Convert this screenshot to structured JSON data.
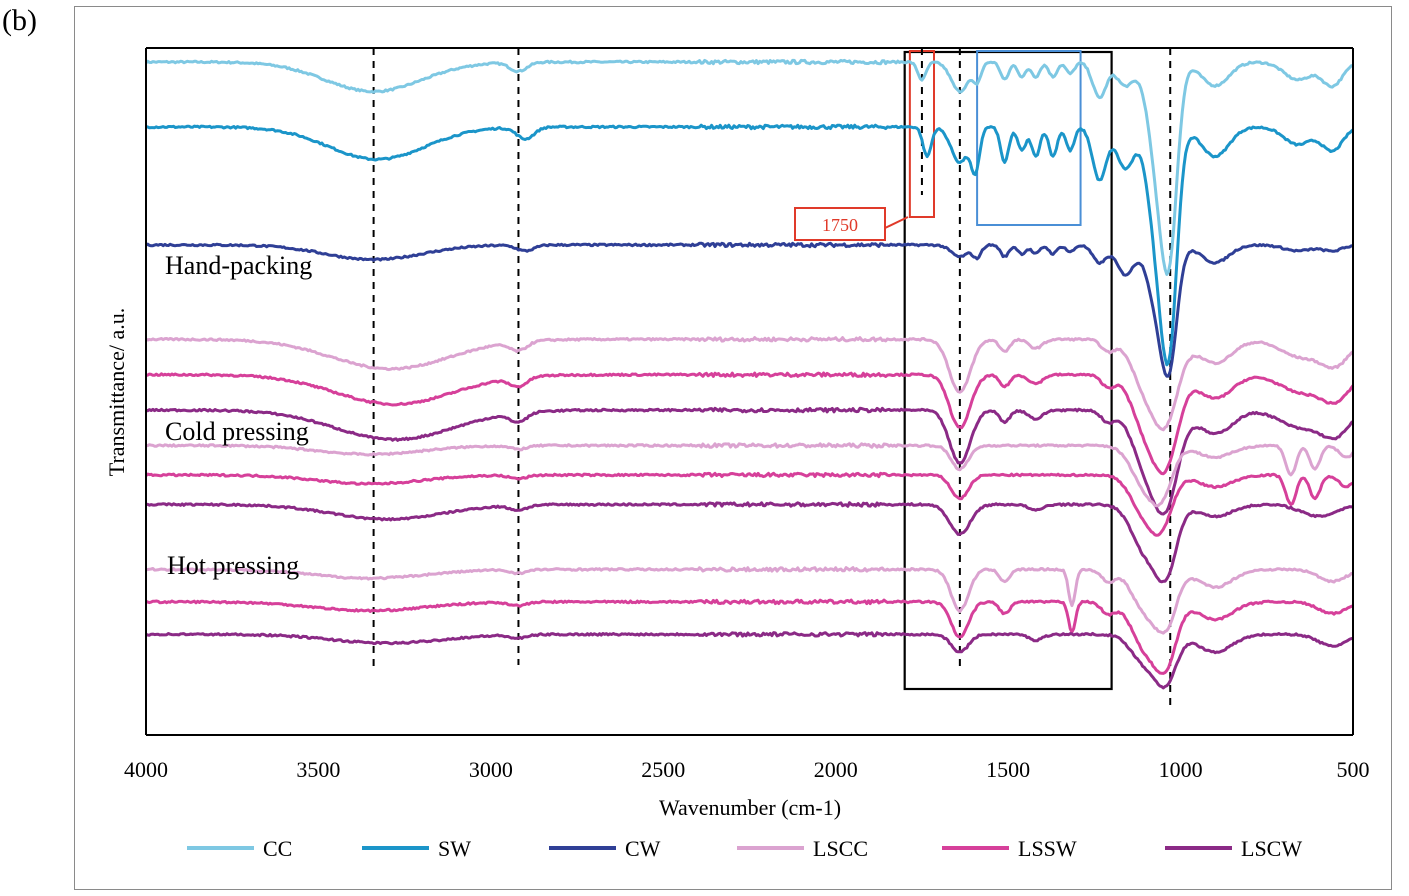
{
  "panel_label": "(b)",
  "colors": {
    "CC": "#7ec8e3",
    "SW": "#1b95c9",
    "CW": "#2f3f96",
    "LSCC": "#dba3d0",
    "LSSW": "#d6409a",
    "LSCW": "#8b2a86",
    "annotation_red": "#e03a2a",
    "annotation_blue": "#4a8fd6"
  },
  "chart_data": {
    "type": "line",
    "title": "",
    "xlabel": "Wavenumber (cm-1)",
    "ylabel": "Transmittance/ a.u.",
    "xlim": [
      4000,
      500
    ],
    "x_reversed": true,
    "x_ticks": [
      4000,
      3500,
      3000,
      2500,
      2000,
      1500,
      1000,
      500
    ],
    "y_ticks": [],
    "grid": false,
    "legend_position": "bottom",
    "groups": [
      {
        "label": "Hand-packing"
      },
      {
        "label": "Cold pressing"
      },
      {
        "label": "Hot pressing"
      }
    ],
    "series": [
      {
        "name": "CC",
        "group": "raw",
        "offset": 0.95,
        "peaks": [
          [
            3340,
            0.05,
            140
          ],
          [
            2920,
            0.015,
            25
          ],
          [
            1750,
            0.03,
            12
          ],
          [
            1640,
            0.05,
            25
          ],
          [
            1590,
            0.03,
            12
          ],
          [
            1510,
            0.03,
            12
          ],
          [
            1460,
            0.025,
            12
          ],
          [
            1420,
            0.025,
            12
          ],
          [
            1370,
            0.025,
            12
          ],
          [
            1320,
            0.02,
            12
          ],
          [
            1235,
            0.06,
            20
          ],
          [
            1160,
            0.04,
            25
          ],
          [
            1060,
            0.2,
            30
          ],
          [
            1030,
            0.22,
            22
          ],
          [
            900,
            0.04,
            40
          ],
          [
            660,
            0.03,
            40
          ],
          [
            560,
            0.04,
            30
          ]
        ]
      },
      {
        "name": "SW",
        "group": "raw",
        "offset": 0.84,
        "peaks": [
          [
            3330,
            0.055,
            140
          ],
          [
            2900,
            0.02,
            25
          ],
          [
            1735,
            0.05,
            12
          ],
          [
            1640,
            0.06,
            25
          ],
          [
            1595,
            0.07,
            12
          ],
          [
            1510,
            0.06,
            12
          ],
          [
            1460,
            0.04,
            12
          ],
          [
            1420,
            0.05,
            12
          ],
          [
            1370,
            0.05,
            12
          ],
          [
            1320,
            0.04,
            12
          ],
          [
            1235,
            0.09,
            20
          ],
          [
            1160,
            0.07,
            25
          ],
          [
            1060,
            0.22,
            30
          ],
          [
            1030,
            0.25,
            22
          ],
          [
            900,
            0.05,
            40
          ],
          [
            660,
            0.03,
            40
          ],
          [
            560,
            0.04,
            30
          ]
        ]
      },
      {
        "name": "CW",
        "group": "raw",
        "offset": 0.64,
        "peaks": [
          [
            3340,
            0.025,
            140
          ],
          [
            2900,
            0.01,
            25
          ],
          [
            1640,
            0.02,
            25
          ],
          [
            1590,
            0.02,
            12
          ],
          [
            1510,
            0.02,
            12
          ],
          [
            1460,
            0.015,
            12
          ],
          [
            1420,
            0.015,
            12
          ],
          [
            1370,
            0.015,
            12
          ],
          [
            1320,
            0.012,
            12
          ],
          [
            1235,
            0.03,
            20
          ],
          [
            1160,
            0.05,
            25
          ],
          [
            1060,
            0.12,
            30
          ],
          [
            1030,
            0.14,
            22
          ],
          [
            900,
            0.03,
            40
          ],
          [
            660,
            0.01,
            40
          ],
          [
            560,
            0.01,
            30
          ]
        ]
      },
      {
        "name": "LSCC",
        "group": "Hand-packing",
        "offset": 0.48,
        "peaks": [
          [
            3290,
            0.05,
            170
          ],
          [
            2920,
            0.015,
            25
          ],
          [
            1640,
            0.09,
            30
          ],
          [
            1510,
            0.02,
            15
          ],
          [
            1420,
            0.015,
            20
          ],
          [
            1210,
            0.02,
            20
          ],
          [
            1100,
            0.08,
            40
          ],
          [
            1040,
            0.12,
            35
          ],
          [
            900,
            0.04,
            50
          ],
          [
            650,
            0.03,
            60
          ],
          [
            550,
            0.04,
            40
          ]
        ]
      },
      {
        "name": "LSSW",
        "group": "Hand-packing",
        "offset": 0.42,
        "peaks": [
          [
            3280,
            0.05,
            170
          ],
          [
            2920,
            0.015,
            25
          ],
          [
            1640,
            0.09,
            30
          ],
          [
            1510,
            0.02,
            15
          ],
          [
            1420,
            0.015,
            20
          ],
          [
            1210,
            0.02,
            20
          ],
          [
            1100,
            0.09,
            40
          ],
          [
            1040,
            0.13,
            35
          ],
          [
            900,
            0.04,
            50
          ],
          [
            650,
            0.03,
            60
          ],
          [
            550,
            0.04,
            40
          ]
        ]
      },
      {
        "name": "LSCW",
        "group": "Hand-packing",
        "offset": 0.36,
        "peaks": [
          [
            3280,
            0.05,
            170
          ],
          [
            2920,
            0.015,
            25
          ],
          [
            1640,
            0.09,
            30
          ],
          [
            1510,
            0.02,
            15
          ],
          [
            1420,
            0.015,
            20
          ],
          [
            1210,
            0.02,
            20
          ],
          [
            1100,
            0.09,
            40
          ],
          [
            1040,
            0.14,
            35
          ],
          [
            900,
            0.04,
            50
          ],
          [
            650,
            0.03,
            60
          ],
          [
            550,
            0.04,
            40
          ]
        ]
      },
      {
        "name": "LSCC",
        "group": "Cold pressing",
        "offset": 0.3,
        "peaks": [
          [
            3350,
            0.015,
            150
          ],
          [
            2920,
            0.006,
            25
          ],
          [
            1640,
            0.04,
            25
          ],
          [
            1100,
            0.07,
            40
          ],
          [
            1050,
            0.06,
            30
          ],
          [
            900,
            0.02,
            50
          ],
          [
            680,
            0.05,
            15
          ],
          [
            610,
            0.04,
            15
          ],
          [
            520,
            0.02,
            20
          ]
        ]
      },
      {
        "name": "LSSW",
        "group": "Cold pressing",
        "offset": 0.25,
        "peaks": [
          [
            3350,
            0.015,
            150
          ],
          [
            2920,
            0.006,
            25
          ],
          [
            1640,
            0.04,
            25
          ],
          [
            1100,
            0.07,
            40
          ],
          [
            1050,
            0.06,
            30
          ],
          [
            900,
            0.02,
            50
          ],
          [
            680,
            0.05,
            15
          ],
          [
            610,
            0.04,
            15
          ],
          [
            520,
            0.02,
            20
          ]
        ]
      },
      {
        "name": "LSCW",
        "group": "Cold pressing",
        "offset": 0.2,
        "peaks": [
          [
            3300,
            0.025,
            160
          ],
          [
            2920,
            0.008,
            25
          ],
          [
            1640,
            0.05,
            30
          ],
          [
            1420,
            0.01,
            20
          ],
          [
            1100,
            0.08,
            40
          ],
          [
            1040,
            0.1,
            30
          ],
          [
            900,
            0.02,
            50
          ],
          [
            600,
            0.02,
            50
          ]
        ]
      },
      {
        "name": "LSCC",
        "group": "Hot pressing",
        "offset": 0.09,
        "peaks": [
          [
            3350,
            0.015,
            160
          ],
          [
            2920,
            0.006,
            25
          ],
          [
            1640,
            0.07,
            25
          ],
          [
            1510,
            0.02,
            15
          ],
          [
            1315,
            0.06,
            10
          ],
          [
            1210,
            0.02,
            20
          ],
          [
            1100,
            0.07,
            40
          ],
          [
            1040,
            0.08,
            30
          ],
          [
            900,
            0.03,
            50
          ],
          [
            560,
            0.02,
            40
          ]
        ]
      },
      {
        "name": "LSSW",
        "group": "Hot pressing",
        "offset": 0.035,
        "peaks": [
          [
            3350,
            0.015,
            160
          ],
          [
            2920,
            0.006,
            25
          ],
          [
            1640,
            0.06,
            25
          ],
          [
            1510,
            0.02,
            15
          ],
          [
            1315,
            0.05,
            10
          ],
          [
            1210,
            0.02,
            20
          ],
          [
            1100,
            0.08,
            40
          ],
          [
            1040,
            0.09,
            30
          ],
          [
            900,
            0.03,
            50
          ],
          [
            560,
            0.02,
            40
          ]
        ]
      },
      {
        "name": "LSCW",
        "group": "Hot pressing",
        "offset": -0.02,
        "peaks": [
          [
            3300,
            0.015,
            160
          ],
          [
            2920,
            0.006,
            25
          ],
          [
            1640,
            0.03,
            25
          ],
          [
            1420,
            0.01,
            20
          ],
          [
            1100,
            0.05,
            40
          ],
          [
            1040,
            0.07,
            30
          ],
          [
            900,
            0.03,
            50
          ],
          [
            560,
            0.02,
            40
          ]
        ]
      }
    ],
    "reference_lines_x": [
      3340,
      2920,
      1750,
      1640,
      1030
    ],
    "annotations": [
      {
        "text": "1750",
        "x": 1750
      },
      {
        "type": "region",
        "x_range": [
          1590,
          1290
        ],
        "color": "blue"
      },
      {
        "type": "region",
        "x_range": [
          1800,
          1200
        ],
        "color": "black"
      }
    ],
    "legend": [
      "CC",
      "SW",
      "CW",
      "LSCC",
      "LSSW",
      "LSCW"
    ]
  }
}
